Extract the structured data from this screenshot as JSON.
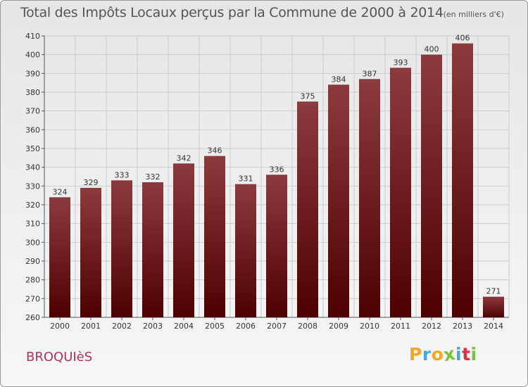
{
  "title": {
    "main": "Total des Impôts Locaux perçus par la Commune de 2000 à 2014",
    "unit": "(en milliers d'€)"
  },
  "commune_name": "BROQUIèS",
  "logo": {
    "text": "Proxiti",
    "letters": [
      "P",
      "r",
      "o",
      "x",
      "i",
      "t",
      "i"
    ],
    "colors": [
      "#f5a623",
      "#4da6d9",
      "#f5a623",
      "#7cc242",
      "#4da6d9",
      "#d9323e",
      "#7cc242"
    ]
  },
  "colors": {
    "bar_top": "#8c3a3e",
    "bar_bottom": "#4e0000",
    "grid": "#cccccc",
    "axis_text": "#333333"
  },
  "chart_data": {
    "type": "bar",
    "title": "Total des Impôts Locaux perçus par la Commune de 2000 à 2014",
    "xlabel": "",
    "ylabel": "(en milliers d'€)",
    "categories": [
      "2000",
      "2001",
      "2002",
      "2003",
      "2004",
      "2005",
      "2006",
      "2007",
      "2008",
      "2009",
      "2010",
      "2011",
      "2012",
      "2013",
      "2014"
    ],
    "values": [
      324,
      329,
      333,
      332,
      342,
      346,
      331,
      336,
      375,
      384,
      387,
      393,
      400,
      406,
      271
    ],
    "ylim": [
      260,
      410
    ],
    "yticks": [
      260,
      270,
      280,
      290,
      300,
      310,
      320,
      330,
      340,
      350,
      360,
      370,
      380,
      390,
      400,
      410
    ],
    "grid": true
  }
}
